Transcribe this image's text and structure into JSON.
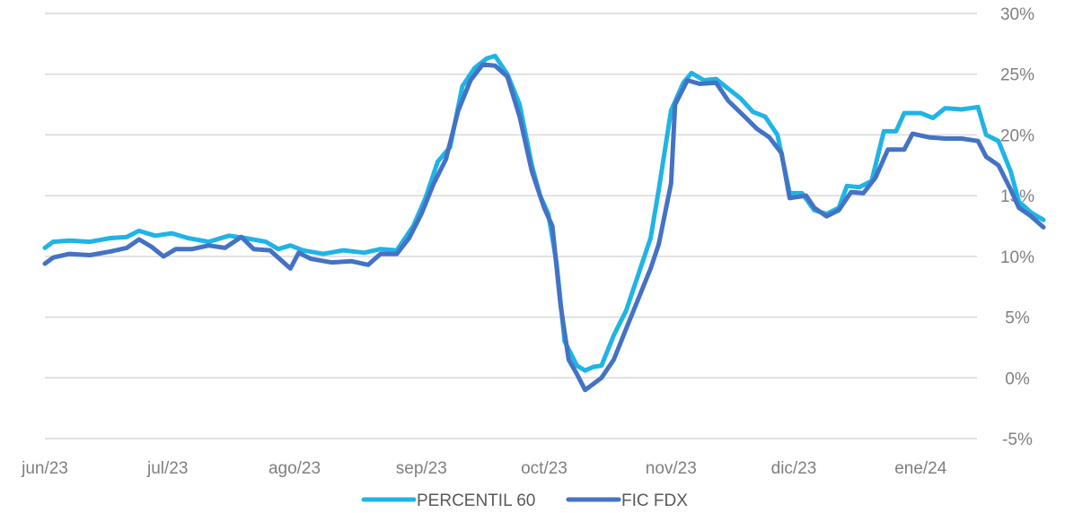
{
  "chart_data": {
    "type": "line",
    "title": "",
    "xlabel": "",
    "ylabel": "",
    "ylim": [
      -5,
      30
    ],
    "y_ticks": [
      30,
      25,
      20,
      15,
      10,
      5,
      0,
      -5
    ],
    "y_tick_labels": [
      "30%",
      "25%",
      "20%",
      "15%",
      "10%",
      "5%",
      "0%",
      "-5%"
    ],
    "y_axis_side": "right",
    "grid": true,
    "x_tick_labels": [
      "jun/23",
      "jul/23",
      "ago/23",
      "sep/23",
      "oct/23",
      "nov/23",
      "dic/23",
      "ene/24"
    ],
    "x_ticks": [
      "2023-06-01",
      "2023-07-01",
      "2023-08-01",
      "2023-09-01",
      "2023-10-01",
      "2023-11-01",
      "2023-12-01",
      "2024-01-01"
    ],
    "xlim": [
      "2023-06-01",
      "2024-01-31"
    ],
    "legend_position": "bottom",
    "series": [
      {
        "name": "PERCENTIL 60",
        "color": "#1fb4e6",
        "points": [
          [
            "2023-06-01",
            10.7
          ],
          [
            "2023-06-03",
            11.2
          ],
          [
            "2023-06-07",
            11.3
          ],
          [
            "2023-06-12",
            11.2
          ],
          [
            "2023-06-17",
            11.5
          ],
          [
            "2023-06-21",
            11.6
          ],
          [
            "2023-06-24",
            12.1
          ],
          [
            "2023-06-28",
            11.7
          ],
          [
            "2023-07-02",
            11.9
          ],
          [
            "2023-07-06",
            11.5
          ],
          [
            "2023-07-11",
            11.2
          ],
          [
            "2023-07-16",
            11.7
          ],
          [
            "2023-07-20",
            11.5
          ],
          [
            "2023-07-25",
            11.2
          ],
          [
            "2023-07-28",
            10.6
          ],
          [
            "2023-07-31",
            10.9
          ],
          [
            "2023-08-03",
            10.5
          ],
          [
            "2023-08-08",
            10.2
          ],
          [
            "2023-08-13",
            10.5
          ],
          [
            "2023-08-18",
            10.3
          ],
          [
            "2023-08-22",
            10.6
          ],
          [
            "2023-08-26",
            10.5
          ],
          [
            "2023-08-30",
            12.5
          ],
          [
            "2023-09-02",
            14.8
          ],
          [
            "2023-09-05",
            17.8
          ],
          [
            "2023-09-08",
            19.0
          ],
          [
            "2023-09-11",
            24.0
          ],
          [
            "2023-09-14",
            25.5
          ],
          [
            "2023-09-17",
            26.3
          ],
          [
            "2023-09-19",
            26.5
          ],
          [
            "2023-09-22",
            25.0
          ],
          [
            "2023-09-25",
            22.5
          ],
          [
            "2023-09-28",
            17.5
          ],
          [
            "2023-09-30",
            15.0
          ],
          [
            "2023-10-02",
            13.5
          ],
          [
            "2023-10-04",
            9.5
          ],
          [
            "2023-10-06",
            3.0
          ],
          [
            "2023-10-09",
            1.0
          ],
          [
            "2023-10-11",
            0.6
          ],
          [
            "2023-10-13",
            0.9
          ],
          [
            "2023-10-15",
            1.0
          ],
          [
            "2023-10-18",
            3.5
          ],
          [
            "2023-10-21",
            5.5
          ],
          [
            "2023-10-24",
            8.5
          ],
          [
            "2023-10-27",
            11.5
          ],
          [
            "2023-10-29",
            15.5
          ],
          [
            "2023-11-01",
            22.0
          ],
          [
            "2023-11-04",
            24.3
          ],
          [
            "2023-11-06",
            25.1
          ],
          [
            "2023-11-09",
            24.5
          ],
          [
            "2023-11-12",
            24.6
          ],
          [
            "2023-11-15",
            23.8
          ],
          [
            "2023-11-18",
            23.0
          ],
          [
            "2023-11-21",
            21.9
          ],
          [
            "2023-11-24",
            21.5
          ],
          [
            "2023-11-27",
            20.0
          ],
          [
            "2023-11-30",
            15.2
          ],
          [
            "2023-12-03",
            15.2
          ],
          [
            "2023-12-06",
            13.8
          ],
          [
            "2023-12-09",
            13.5
          ],
          [
            "2023-12-12",
            14.0
          ],
          [
            "2023-12-14",
            15.8
          ],
          [
            "2023-12-17",
            15.7
          ],
          [
            "2023-12-20",
            16.2
          ],
          [
            "2023-12-23",
            20.3
          ],
          [
            "2023-12-26",
            20.3
          ],
          [
            "2023-12-28",
            21.8
          ],
          [
            "2024-01-01",
            21.8
          ],
          [
            "2024-01-04",
            21.4
          ],
          [
            "2024-01-07",
            22.2
          ],
          [
            "2024-01-11",
            22.1
          ],
          [
            "2024-01-15",
            22.3
          ],
          [
            "2024-01-17",
            20.0
          ],
          [
            "2024-01-20",
            19.5
          ],
          [
            "2024-01-23",
            17.0
          ],
          [
            "2024-01-25",
            14.5
          ],
          [
            "2024-01-28",
            13.6
          ],
          [
            "2024-01-31",
            13.0
          ]
        ]
      },
      {
        "name": "FIC FDX",
        "color": "#4472c4",
        "points": [
          [
            "2023-06-01",
            9.4
          ],
          [
            "2023-06-03",
            9.9
          ],
          [
            "2023-06-07",
            10.2
          ],
          [
            "2023-06-12",
            10.1
          ],
          [
            "2023-06-17",
            10.4
          ],
          [
            "2023-06-21",
            10.7
          ],
          [
            "2023-06-24",
            11.4
          ],
          [
            "2023-06-27",
            10.8
          ],
          [
            "2023-06-30",
            10.0
          ],
          [
            "2023-07-03",
            10.6
          ],
          [
            "2023-07-07",
            10.6
          ],
          [
            "2023-07-11",
            10.9
          ],
          [
            "2023-07-15",
            10.7
          ],
          [
            "2023-07-19",
            11.6
          ],
          [
            "2023-07-22",
            10.6
          ],
          [
            "2023-07-26",
            10.5
          ],
          [
            "2023-07-31",
            9.0
          ],
          [
            "2023-08-02",
            10.3
          ],
          [
            "2023-08-05",
            9.8
          ],
          [
            "2023-08-10",
            9.5
          ],
          [
            "2023-08-15",
            9.6
          ],
          [
            "2023-08-19",
            9.3
          ],
          [
            "2023-08-22",
            10.2
          ],
          [
            "2023-08-26",
            10.2
          ],
          [
            "2023-08-29",
            11.5
          ],
          [
            "2023-09-01",
            13.5
          ],
          [
            "2023-09-04",
            16.0
          ],
          [
            "2023-09-07",
            18.0
          ],
          [
            "2023-09-10",
            22.0
          ],
          [
            "2023-09-13",
            24.5
          ],
          [
            "2023-09-16",
            25.8
          ],
          [
            "2023-09-19",
            25.7
          ],
          [
            "2023-09-22",
            24.8
          ],
          [
            "2023-09-25",
            21.5
          ],
          [
            "2023-09-28",
            17.0
          ],
          [
            "2023-10-01",
            14.0
          ],
          [
            "2023-10-03",
            12.5
          ],
          [
            "2023-10-05",
            6.0
          ],
          [
            "2023-10-07",
            1.5
          ],
          [
            "2023-10-09",
            0.3
          ],
          [
            "2023-10-11",
            -1.0
          ],
          [
            "2023-10-13",
            -0.5
          ],
          [
            "2023-10-15",
            0.0
          ],
          [
            "2023-10-18",
            1.5
          ],
          [
            "2023-10-21",
            4.0
          ],
          [
            "2023-10-24",
            6.5
          ],
          [
            "2023-10-27",
            9.0
          ],
          [
            "2023-10-29",
            11.0
          ],
          [
            "2023-11-01",
            16.0
          ],
          [
            "2023-11-02",
            22.5
          ],
          [
            "2023-11-05",
            24.5
          ],
          [
            "2023-11-08",
            24.2
          ],
          [
            "2023-11-12",
            24.3
          ],
          [
            "2023-11-15",
            22.8
          ],
          [
            "2023-11-19",
            21.5
          ],
          [
            "2023-11-22",
            20.5
          ],
          [
            "2023-11-25",
            19.8
          ],
          [
            "2023-11-28",
            18.5
          ],
          [
            "2023-11-30",
            14.8
          ],
          [
            "2023-12-04",
            15.0
          ],
          [
            "2023-12-06",
            14.0
          ],
          [
            "2023-12-09",
            13.3
          ],
          [
            "2023-12-12",
            13.8
          ],
          [
            "2023-12-15",
            15.3
          ],
          [
            "2023-12-18",
            15.2
          ],
          [
            "2023-12-21",
            16.5
          ],
          [
            "2023-12-24",
            18.8
          ],
          [
            "2023-12-28",
            18.8
          ],
          [
            "2023-12-30",
            20.1
          ],
          [
            "2024-01-03",
            19.8
          ],
          [
            "2024-01-07",
            19.7
          ],
          [
            "2024-01-11",
            19.7
          ],
          [
            "2024-01-15",
            19.5
          ],
          [
            "2024-01-17",
            18.2
          ],
          [
            "2024-01-20",
            17.5
          ],
          [
            "2024-01-23",
            15.5
          ],
          [
            "2024-01-25",
            14.0
          ],
          [
            "2024-01-28",
            13.3
          ],
          [
            "2024-01-31",
            12.4
          ]
        ]
      }
    ]
  }
}
